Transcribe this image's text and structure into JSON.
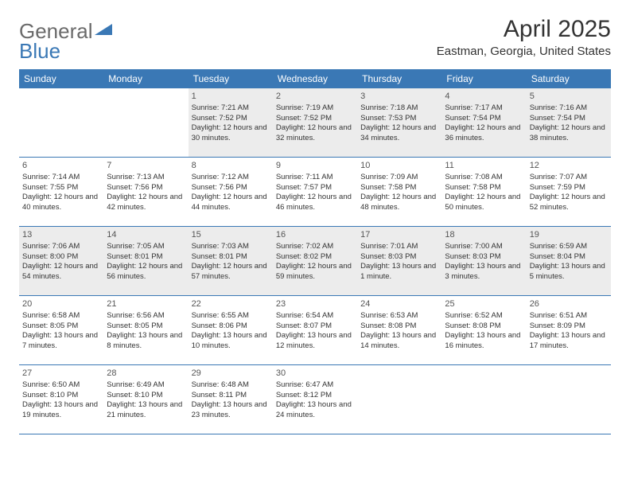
{
  "logo": {
    "text1": "General",
    "text2": "Blue"
  },
  "title": "April 2025",
  "location": "Eastman, Georgia, United States",
  "colors": {
    "header_bg": "#3a78b5",
    "header_text": "#ffffff",
    "shaded_cell": "#ececec",
    "border": "#3a78b5",
    "text": "#333333",
    "logo_gray": "#6a6a6a",
    "logo_blue": "#3a78b5"
  },
  "weekdays": [
    "Sunday",
    "Monday",
    "Tuesday",
    "Wednesday",
    "Thursday",
    "Friday",
    "Saturday"
  ],
  "weeks": [
    [
      null,
      null,
      {
        "n": "1",
        "sr": "Sunrise: 7:21 AM",
        "ss": "Sunset: 7:52 PM",
        "dl": "Daylight: 12 hours and 30 minutes."
      },
      {
        "n": "2",
        "sr": "Sunrise: 7:19 AM",
        "ss": "Sunset: 7:52 PM",
        "dl": "Daylight: 12 hours and 32 minutes."
      },
      {
        "n": "3",
        "sr": "Sunrise: 7:18 AM",
        "ss": "Sunset: 7:53 PM",
        "dl": "Daylight: 12 hours and 34 minutes."
      },
      {
        "n": "4",
        "sr": "Sunrise: 7:17 AM",
        "ss": "Sunset: 7:54 PM",
        "dl": "Daylight: 12 hours and 36 minutes."
      },
      {
        "n": "5",
        "sr": "Sunrise: 7:16 AM",
        "ss": "Sunset: 7:54 PM",
        "dl": "Daylight: 12 hours and 38 minutes."
      }
    ],
    [
      {
        "n": "6",
        "sr": "Sunrise: 7:14 AM",
        "ss": "Sunset: 7:55 PM",
        "dl": "Daylight: 12 hours and 40 minutes."
      },
      {
        "n": "7",
        "sr": "Sunrise: 7:13 AM",
        "ss": "Sunset: 7:56 PM",
        "dl": "Daylight: 12 hours and 42 minutes."
      },
      {
        "n": "8",
        "sr": "Sunrise: 7:12 AM",
        "ss": "Sunset: 7:56 PM",
        "dl": "Daylight: 12 hours and 44 minutes."
      },
      {
        "n": "9",
        "sr": "Sunrise: 7:11 AM",
        "ss": "Sunset: 7:57 PM",
        "dl": "Daylight: 12 hours and 46 minutes."
      },
      {
        "n": "10",
        "sr": "Sunrise: 7:09 AM",
        "ss": "Sunset: 7:58 PM",
        "dl": "Daylight: 12 hours and 48 minutes."
      },
      {
        "n": "11",
        "sr": "Sunrise: 7:08 AM",
        "ss": "Sunset: 7:58 PM",
        "dl": "Daylight: 12 hours and 50 minutes."
      },
      {
        "n": "12",
        "sr": "Sunrise: 7:07 AM",
        "ss": "Sunset: 7:59 PM",
        "dl": "Daylight: 12 hours and 52 minutes."
      }
    ],
    [
      {
        "n": "13",
        "sr": "Sunrise: 7:06 AM",
        "ss": "Sunset: 8:00 PM",
        "dl": "Daylight: 12 hours and 54 minutes."
      },
      {
        "n": "14",
        "sr": "Sunrise: 7:05 AM",
        "ss": "Sunset: 8:01 PM",
        "dl": "Daylight: 12 hours and 56 minutes."
      },
      {
        "n": "15",
        "sr": "Sunrise: 7:03 AM",
        "ss": "Sunset: 8:01 PM",
        "dl": "Daylight: 12 hours and 57 minutes."
      },
      {
        "n": "16",
        "sr": "Sunrise: 7:02 AM",
        "ss": "Sunset: 8:02 PM",
        "dl": "Daylight: 12 hours and 59 minutes."
      },
      {
        "n": "17",
        "sr": "Sunrise: 7:01 AM",
        "ss": "Sunset: 8:03 PM",
        "dl": "Daylight: 13 hours and 1 minute."
      },
      {
        "n": "18",
        "sr": "Sunrise: 7:00 AM",
        "ss": "Sunset: 8:03 PM",
        "dl": "Daylight: 13 hours and 3 minutes."
      },
      {
        "n": "19",
        "sr": "Sunrise: 6:59 AM",
        "ss": "Sunset: 8:04 PM",
        "dl": "Daylight: 13 hours and 5 minutes."
      }
    ],
    [
      {
        "n": "20",
        "sr": "Sunrise: 6:58 AM",
        "ss": "Sunset: 8:05 PM",
        "dl": "Daylight: 13 hours and 7 minutes."
      },
      {
        "n": "21",
        "sr": "Sunrise: 6:56 AM",
        "ss": "Sunset: 8:05 PM",
        "dl": "Daylight: 13 hours and 8 minutes."
      },
      {
        "n": "22",
        "sr": "Sunrise: 6:55 AM",
        "ss": "Sunset: 8:06 PM",
        "dl": "Daylight: 13 hours and 10 minutes."
      },
      {
        "n": "23",
        "sr": "Sunrise: 6:54 AM",
        "ss": "Sunset: 8:07 PM",
        "dl": "Daylight: 13 hours and 12 minutes."
      },
      {
        "n": "24",
        "sr": "Sunrise: 6:53 AM",
        "ss": "Sunset: 8:08 PM",
        "dl": "Daylight: 13 hours and 14 minutes."
      },
      {
        "n": "25",
        "sr": "Sunrise: 6:52 AM",
        "ss": "Sunset: 8:08 PM",
        "dl": "Daylight: 13 hours and 16 minutes."
      },
      {
        "n": "26",
        "sr": "Sunrise: 6:51 AM",
        "ss": "Sunset: 8:09 PM",
        "dl": "Daylight: 13 hours and 17 minutes."
      }
    ],
    [
      {
        "n": "27",
        "sr": "Sunrise: 6:50 AM",
        "ss": "Sunset: 8:10 PM",
        "dl": "Daylight: 13 hours and 19 minutes."
      },
      {
        "n": "28",
        "sr": "Sunrise: 6:49 AM",
        "ss": "Sunset: 8:10 PM",
        "dl": "Daylight: 13 hours and 21 minutes."
      },
      {
        "n": "29",
        "sr": "Sunrise: 6:48 AM",
        "ss": "Sunset: 8:11 PM",
        "dl": "Daylight: 13 hours and 23 minutes."
      },
      {
        "n": "30",
        "sr": "Sunrise: 6:47 AM",
        "ss": "Sunset: 8:12 PM",
        "dl": "Daylight: 13 hours and 24 minutes."
      },
      null,
      null,
      null
    ]
  ]
}
